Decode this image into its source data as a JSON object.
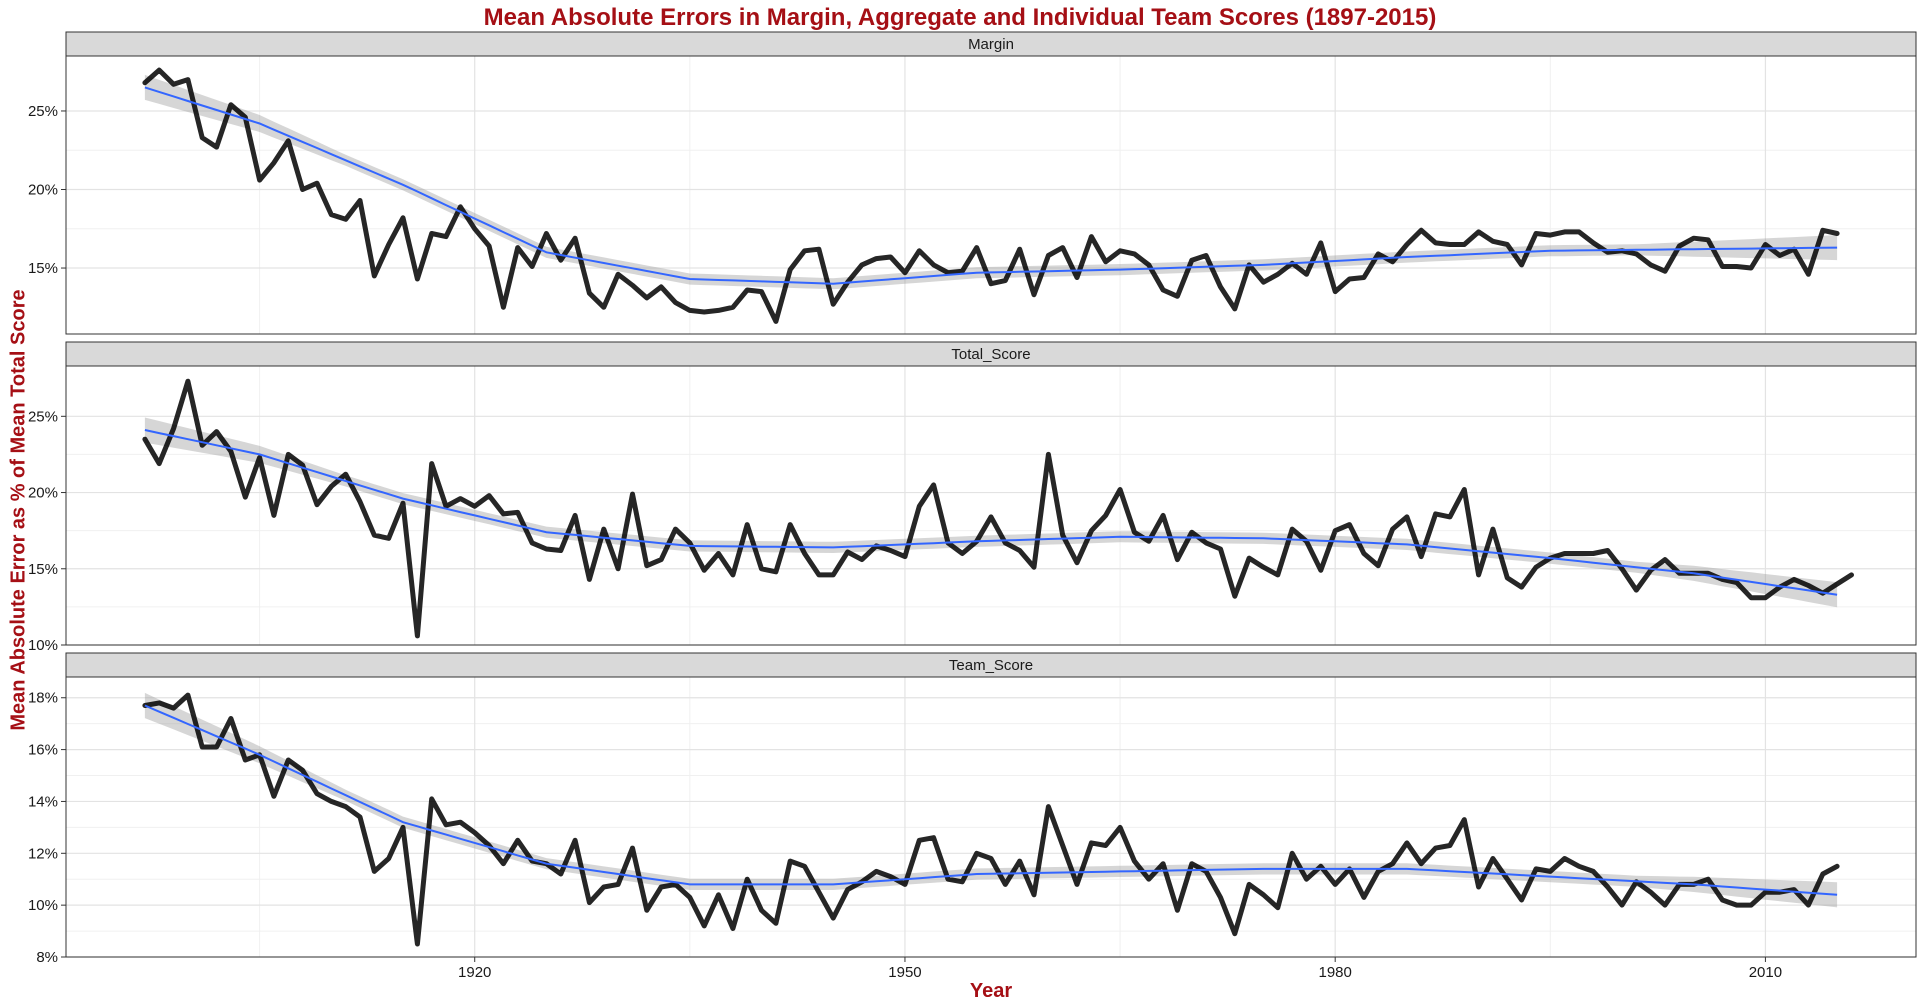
{
  "chart_data": {
    "type": "line",
    "title": "Mean Absolute Errors in Margin, Aggregate and Individual Team Scores (1897-2015)",
    "xlabel": "Year",
    "ylabel": "Mean Absolute Error as % of Mean Total Score",
    "x_ticks": [
      1920,
      1950,
      1980,
      2010
    ],
    "xlim": [
      1891.5,
      2020.5
    ],
    "grid": true,
    "smoother": {
      "method": "loess",
      "color": "#3366ff",
      "band": "confidence interval (grey)"
    },
    "facets": [
      {
        "name": "Margin",
        "ylim": [
          10.8,
          28.5
        ],
        "y_ticks": [
          15,
          20,
          25
        ],
        "y_tick_labels": [
          "15%",
          "20%",
          "25%"
        ],
        "values": [
          26.8,
          27.6,
          26.7,
          27.0,
          23.3,
          22.7,
          25.4,
          24.6,
          20.6,
          21.7,
          23.1,
          20.0,
          20.4,
          18.4,
          18.1,
          19.3,
          14.5,
          16.5,
          18.2,
          14.3,
          17.2,
          17.0,
          18.9,
          17.5,
          16.4,
          12.5,
          16.3,
          15.1,
          17.2,
          15.5,
          16.9,
          13.4,
          12.5,
          14.6,
          13.9,
          13.1,
          13.8,
          12.8,
          12.3,
          12.2,
          12.3,
          12.5,
          13.6,
          13.5,
          11.6,
          14.9,
          16.1,
          16.2,
          12.7,
          14.1,
          15.2,
          15.6,
          15.7,
          14.7,
          16.1,
          15.2,
          14.7,
          14.8,
          16.3,
          14.0,
          14.2,
          16.2,
          13.3,
          15.8,
          16.3,
          14.4,
          17.0,
          15.4,
          16.1,
          15.9,
          15.2,
          13.6,
          13.2,
          15.5,
          15.8,
          13.8,
          12.4,
          15.2,
          14.1,
          14.6,
          15.3,
          14.6,
          16.6,
          13.5,
          14.3,
          14.4,
          15.9,
          15.4,
          16.5,
          17.4,
          16.6,
          16.5,
          16.5,
          17.3,
          16.7,
          16.5,
          15.2,
          17.2,
          17.1,
          17.3,
          17.3,
          16.6,
          16.0,
          16.1,
          15.9,
          15.2,
          14.8,
          16.4,
          16.9,
          16.8,
          15.1,
          15.1,
          15.0,
          16.5,
          15.8,
          16.2,
          14.6,
          17.4,
          17.2
        ],
        "trend": [
          [
            1897,
            26.5
          ],
          [
            1905,
            24.2
          ],
          [
            1915,
            20.3
          ],
          [
            1925,
            16.0
          ],
          [
            1935,
            14.3
          ],
          [
            1945,
            14.0
          ],
          [
            1955,
            14.7
          ],
          [
            1965,
            14.9
          ],
          [
            1975,
            15.2
          ],
          [
            1985,
            15.7
          ],
          [
            1995,
            16.1
          ],
          [
            2005,
            16.2
          ],
          [
            2015,
            16.3
          ]
        ]
      },
      {
        "name": "Total_Score",
        "ylim": [
          10.0,
          28.3
        ],
        "y_ticks": [
          10,
          15,
          20,
          25
        ],
        "y_tick_labels": [
          "10%",
          "15%",
          "20%",
          "25%"
        ],
        "values": [
          23.5,
          21.9,
          24.2,
          27.3,
          23.1,
          24.0,
          22.7,
          19.7,
          22.3,
          18.5,
          22.5,
          21.8,
          19.2,
          20.4,
          21.2,
          19.4,
          17.2,
          17.0,
          19.3,
          10.6,
          21.9,
          19.1,
          19.6,
          19.1,
          19.8,
          18.6,
          18.7,
          16.7,
          16.3,
          16.2,
          18.5,
          14.3,
          17.6,
          15.0,
          19.9,
          15.2,
          15.6,
          17.6,
          16.7,
          14.9,
          16.0,
          14.6,
          17.9,
          15.0,
          14.8,
          17.9,
          16.0,
          14.6,
          14.6,
          16.1,
          15.6,
          16.5,
          16.2,
          15.8,
          19.1,
          20.5,
          16.7,
          16.0,
          16.8,
          18.4,
          16.7,
          16.2,
          15.1,
          22.5,
          17.2,
          15.4,
          17.5,
          18.5,
          20.2,
          17.4,
          16.8,
          18.5,
          15.6,
          17.4,
          16.7,
          16.3,
          13.2,
          15.7,
          15.1,
          14.6,
          17.6,
          16.8,
          14.9,
          17.5,
          17.9,
          16.0,
          15.2,
          17.6,
          18.4,
          15.8,
          18.6,
          18.4,
          20.2,
          14.6,
          17.6,
          14.4,
          13.8,
          15.1,
          15.7,
          16.0,
          16.0,
          16.0,
          16.2,
          15.0,
          13.6,
          14.9,
          15.6,
          14.7,
          14.7,
          14.7,
          14.3,
          14.1,
          13.1,
          13.1,
          13.8,
          14.3,
          13.9,
          13.4,
          14.0,
          14.6
        ],
        "trend": [
          [
            1897,
            24.1
          ],
          [
            1905,
            22.5
          ],
          [
            1915,
            19.6
          ],
          [
            1925,
            17.4
          ],
          [
            1935,
            16.5
          ],
          [
            1945,
            16.4
          ],
          [
            1955,
            16.8
          ],
          [
            1965,
            17.1
          ],
          [
            1975,
            17.0
          ],
          [
            1985,
            16.6
          ],
          [
            1995,
            15.7
          ],
          [
            2005,
            14.7
          ],
          [
            2015,
            13.3
          ]
        ]
      },
      {
        "name": "Team_Score",
        "ylim": [
          8.0,
          18.8
        ],
        "y_ticks": [
          8,
          10,
          12,
          14,
          16,
          18
        ],
        "y_tick_labels": [
          "8%",
          "10%",
          "12%",
          "14%",
          "16%",
          "18%"
        ],
        "values": [
          17.7,
          17.8,
          17.6,
          18.1,
          16.1,
          16.1,
          17.2,
          15.6,
          15.8,
          14.2,
          15.6,
          15.2,
          14.3,
          14.0,
          13.8,
          13.4,
          11.3,
          11.8,
          13.0,
          8.5,
          14.1,
          13.1,
          13.2,
          12.8,
          12.3,
          11.6,
          12.5,
          11.7,
          11.6,
          11.2,
          12.5,
          10.1,
          10.7,
          10.8,
          12.2,
          9.8,
          10.7,
          10.8,
          10.3,
          9.2,
          10.4,
          9.1,
          11.0,
          9.8,
          9.3,
          11.7,
          11.5,
          10.5,
          9.5,
          10.6,
          10.9,
          11.3,
          11.1,
          10.8,
          12.5,
          12.6,
          11.0,
          10.9,
          12.0,
          11.8,
          10.8,
          11.7,
          10.4,
          13.8,
          12.3,
          10.8,
          12.4,
          12.3,
          13.0,
          11.7,
          11.0,
          11.6,
          9.8,
          11.6,
          11.3,
          10.3,
          8.9,
          10.8,
          10.4,
          9.9,
          12.0,
          11.0,
          11.5,
          10.8,
          11.4,
          10.3,
          11.3,
          11.6,
          12.4,
          11.6,
          12.2,
          12.3,
          13.3,
          10.7,
          11.8,
          11.0,
          10.2,
          11.4,
          11.3,
          11.8,
          11.5,
          11.3,
          10.7,
          10.0,
          10.9,
          10.5,
          10.0,
          10.8,
          10.8,
          11.0,
          10.2,
          10.0,
          10.0,
          10.5,
          10.5,
          10.6,
          10.0,
          11.2,
          11.5
        ],
        "trend": [
          [
            1897,
            17.7
          ],
          [
            1905,
            15.8
          ],
          [
            1915,
            13.2
          ],
          [
            1925,
            11.6
          ],
          [
            1935,
            10.8
          ],
          [
            1945,
            10.8
          ],
          [
            1955,
            11.2
          ],
          [
            1965,
            11.3
          ],
          [
            1975,
            11.4
          ],
          [
            1985,
            11.4
          ],
          [
            1995,
            11.1
          ],
          [
            2005,
            10.8
          ],
          [
            2015,
            10.4
          ]
        ]
      }
    ]
  }
}
